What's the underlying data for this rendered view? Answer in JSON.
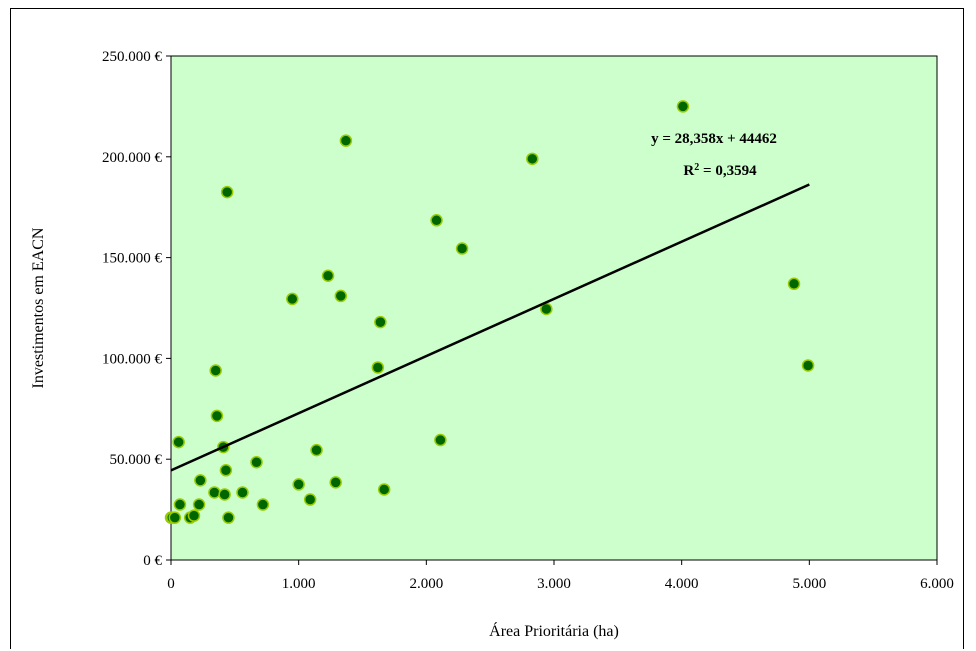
{
  "chart_data": {
    "type": "scatter",
    "title": "",
    "xlabel": "Área Prioritária (ha)",
    "ylabel": "Investimentos em EACN",
    "xlim": [
      0,
      6000
    ],
    "ylim": [
      0,
      250000
    ],
    "x_ticks": [
      0,
      1000,
      2000,
      3000,
      4000,
      5000,
      6000
    ],
    "y_ticks": [
      0,
      50000,
      100000,
      150000,
      200000,
      250000
    ],
    "x_tick_labels": [
      "0",
      "1.000",
      "2.000",
      "3.000",
      "4.000",
      "5.000",
      "6.000"
    ],
    "y_tick_labels": [
      "0 €",
      "50.000 €",
      "100.000 €",
      "150.000 €",
      "200.000 €",
      "250.000 €"
    ],
    "grid": false,
    "legend": "none",
    "series": [
      {
        "x": [
          0,
          10,
          30,
          60,
          70,
          150,
          180,
          220,
          230,
          340,
          350,
          360,
          410,
          420,
          430,
          440,
          450,
          560,
          670,
          720,
          950,
          1000,
          1090,
          1140,
          1230,
          1290,
          1330,
          1370,
          1620,
          1640,
          1670,
          2080,
          2110,
          2280,
          2830,
          2940,
          4010,
          4880,
          4990
        ],
        "y": [
          21000,
          21000,
          21000,
          58500,
          27500,
          21000,
          22000,
          27500,
          39500,
          33500,
          94000,
          71500,
          56000,
          32500,
          44500,
          182500,
          21000,
          33500,
          48500,
          27500,
          129500,
          37500,
          30000,
          54500,
          141000,
          38500,
          131000,
          208000,
          95500,
          118000,
          35000,
          168500,
          59500,
          154500,
          199000,
          124500,
          225000,
          137000,
          96500
        ]
      }
    ],
    "trendline": {
      "slope": 28.358,
      "intercept": 44462,
      "equation_label": "y = 28,358x + 44462",
      "r2_prefix": "R",
      "r2_exponent": "2",
      "r2_value": " = 0,3594"
    },
    "colors": {
      "plot_background": "#ccffcc",
      "marker_fill": "#006600",
      "marker_edge": "#99cc00",
      "trendline": "#000000"
    }
  }
}
